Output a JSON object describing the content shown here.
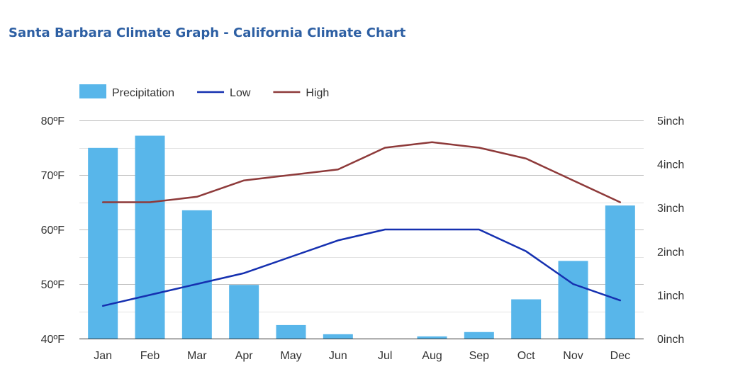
{
  "page_title": "Santa Barbara Climate Graph - California Climate Chart",
  "chart_data": {
    "type": "bar",
    "categories": [
      "Jan",
      "Feb",
      "Mar",
      "Apr",
      "May",
      "Jun",
      "Jul",
      "Aug",
      "Sep",
      "Oct",
      "Nov",
      "Dec"
    ],
    "series": [
      {
        "name": "Precipitation",
        "type": "bar",
        "axis": "right",
        "color": "#58b6ea",
        "values": [
          4.37,
          4.65,
          2.94,
          1.23,
          0.31,
          0.1,
          0.0,
          0.05,
          0.15,
          0.9,
          1.78,
          3.05
        ]
      },
      {
        "name": "Low",
        "type": "line",
        "axis": "left",
        "color": "#1530b0",
        "values": [
          46,
          48,
          50,
          52,
          55,
          58,
          60,
          60,
          60,
          56,
          50,
          47
        ]
      },
      {
        "name": "High",
        "type": "line",
        "axis": "left",
        "color": "#8e3a3a",
        "values": [
          65,
          65,
          66,
          69,
          70,
          71,
          75,
          76,
          75,
          73,
          69,
          65
        ]
      }
    ],
    "y_left": {
      "ylim": [
        40,
        80
      ],
      "ticks": [
        40,
        50,
        60,
        70,
        80
      ],
      "tick_labels": [
        "40ºF",
        "50ºF",
        "60ºF",
        "70ºF",
        "80ºF"
      ]
    },
    "y_right": {
      "ylim": [
        0,
        5
      ],
      "ticks": [
        0,
        1,
        2,
        3,
        4,
        5
      ],
      "tick_labels": [
        "0inch",
        "1inch",
        "2inch",
        "3inch",
        "4inch",
        "5inch"
      ]
    },
    "legend": {
      "position": "top-left",
      "entries": [
        "Precipitation",
        "Low",
        "High"
      ]
    },
    "grid": true
  }
}
